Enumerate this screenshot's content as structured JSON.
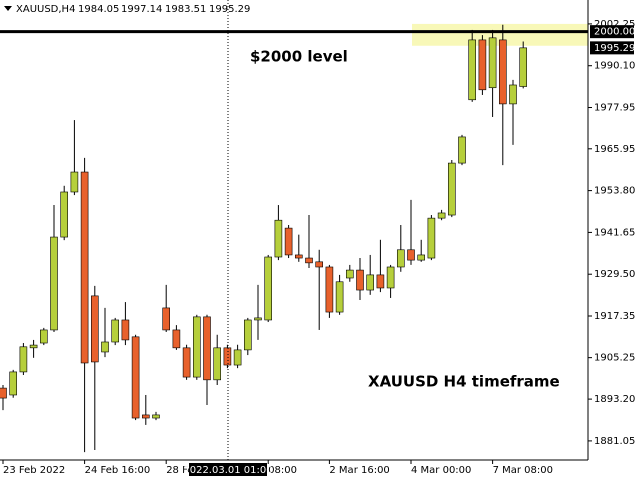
{
  "chart_data": {
    "type": "candlestick",
    "symbol": "XAUUSD,H4",
    "categories": [
      "23 Feb 2022",
      null,
      null,
      null,
      null,
      null,
      null,
      null,
      "24 Feb 16:00",
      null,
      null,
      null,
      null,
      null,
      null,
      null,
      "28 Feb",
      null,
      null,
      null,
      null,
      null,
      null,
      null,
      null,
      null,
      "08:00",
      null,
      null,
      null,
      null,
      null,
      "2 Mar 16:00",
      null,
      null,
      null,
      null,
      null,
      null,
      null,
      "4 Mar 00:00",
      null,
      null,
      null,
      null,
      null,
      null,
      null,
      "7 Mar 08:00",
      null,
      null,
      null
    ],
    "open": [
      1896.4,
      1894.4,
      1901.1,
      1908.1,
      1909.5,
      1913.3,
      1940.3,
      1953.4,
      1959.2,
      1923.2,
      1906.9,
      1909.8,
      1916.2,
      1911.3,
      1888.6,
      1887.7,
      1919.7,
      1913.3,
      1908.1,
      1899.6,
      1917.1,
      1898.8,
      1908.1,
      1903.1,
      1907.5,
      1916.2,
      1916.2,
      1934.5,
      1942.9,
      1935.1,
      1934.2,
      1933.1,
      1931.6,
      1918.5,
      1928.4,
      1930.7,
      1924.9,
      1929.3,
      1925.5,
      1931.6,
      1936.6,
      1933.6,
      1934.2,
      1945.8,
      1946.7,
      1961.8,
      1980.2,
      1997.6,
      1983.7,
      1997.6,
      1979.0,
      1984.05
    ],
    "high": [
      1897.3,
      1901.7,
      1909.5,
      1910.4,
      1913.9,
      1949.6,
      1955.2,
      1974.3,
      1963.3,
      1926.1,
      1919.7,
      1916.8,
      1921.4,
      1911.9,
      1894.4,
      1889.5,
      1926.4,
      1914.7,
      1909.0,
      1917.7,
      1917.7,
      1911.9,
      1909.0,
      1909.0,
      1916.8,
      1926.4,
      1935.1,
      1949.6,
      1943.8,
      1941.0,
      1946.7,
      1936.6,
      1932.2,
      1929.3,
      1932.2,
      1934.2,
      1935.1,
      1939.5,
      1932.2,
      1943.8,
      1951.1,
      1939.5,
      1946.7,
      1948.2,
      1962.7,
      1970.0,
      2000.5,
      1999.0,
      2000.5,
      2002.0,
      1986.0,
      1997.14
    ],
    "low": [
      1890.0,
      1893.6,
      1900.2,
      1905.2,
      1908.9,
      1912.7,
      1939.4,
      1952.5,
      1877.8,
      1878.4,
      1905.4,
      1908.9,
      1908.9,
      1887.1,
      1885.7,
      1887.1,
      1912.7,
      1907.5,
      1898.8,
      1898.8,
      1891.5,
      1897.3,
      1902.2,
      1902.2,
      1906.0,
      1910.4,
      1915.6,
      1933.6,
      1934.2,
      1933.1,
      1931.3,
      1913.3,
      1916.8,
      1917.7,
      1927.3,
      1922.0,
      1923.5,
      1924.3,
      1922.6,
      1930.2,
      1932.2,
      1933.1,
      1933.6,
      1945.2,
      1946.1,
      1961.2,
      1979.6,
      1981.6,
      1975.2,
      1961.2,
      1967.1,
      1983.51
    ],
    "close": [
      1893.5,
      1901.1,
      1908.4,
      1908.9,
      1913.3,
      1940.3,
      1953.4,
      1959.2,
      1903.7,
      1904.0,
      1909.8,
      1916.2,
      1910.4,
      1887.7,
      1887.7,
      1888.6,
      1913.3,
      1908.1,
      1899.6,
      1917.1,
      1898.8,
      1908.1,
      1903.1,
      1907.5,
      1916.2,
      1916.8,
      1934.5,
      1945.2,
      1935.1,
      1934.2,
      1932.8,
      1931.6,
      1918.5,
      1927.3,
      1930.7,
      1924.9,
      1929.3,
      1925.5,
      1931.6,
      1936.6,
      1933.6,
      1935.1,
      1945.8,
      1947.3,
      1961.8,
      1969.4,
      1997.6,
      1983.1,
      1998.2,
      1979.0,
      1984.5,
      1995.29
    ],
    "bull_color": "#b6cf3b",
    "bear_color": "#e8612c",
    "ylim": [
      1875.5,
      2009.2
    ],
    "yticks": [
      1881.05,
      {
        "value": 1893.2,
        "label": "1893.20"
      },
      1905.25,
      1917.35,
      {
        "value": 1929.5,
        "label": "1929.50"
      },
      1941.65,
      {
        "value": 1953.8,
        "label": "1953.80"
      },
      1965.95,
      1977.95,
      {
        "value": 1990.1,
        "label": "1990.10"
      },
      2002.25
    ],
    "hline": {
      "value": 2000,
      "label": "2000.00",
      "color": "#000000"
    },
    "zone": {
      "range": [
        1995.9,
        2002.25
      ],
      "color": "#f8f8b8"
    },
    "crosshair_label": "2022.03.01 01:00",
    "annotations": [
      "$2000 level",
      "XAUUSD H4 timeframe"
    ]
  }
}
